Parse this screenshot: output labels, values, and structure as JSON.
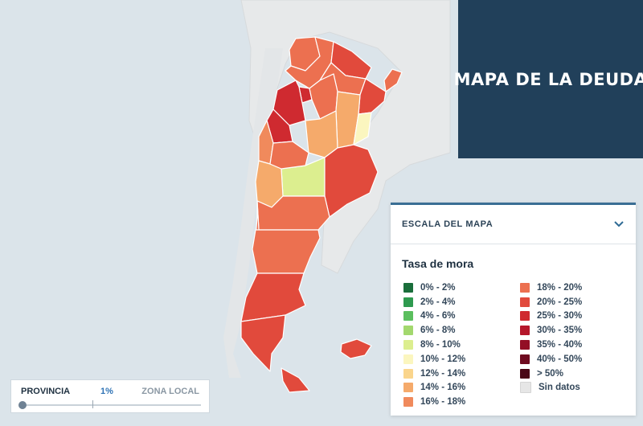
{
  "title": "MAPA DE LA DEUDA",
  "legend": {
    "header": "ESCALA DEL MAPA",
    "subtitle": "Tasa de mora",
    "left": [
      {
        "label": "0% - 2%",
        "color": "#1a6e3b"
      },
      {
        "label": "2% - 4%",
        "color": "#2e9a4f"
      },
      {
        "label": "4% - 6%",
        "color": "#5bbf5e"
      },
      {
        "label": "6% - 8%",
        "color": "#a3d86e"
      },
      {
        "label": "8% - 10%",
        "color": "#dcee8f"
      },
      {
        "label": "10% - 12%",
        "color": "#fbf6bf"
      },
      {
        "label": "12% - 14%",
        "color": "#fad58c"
      },
      {
        "label": "14% - 16%",
        "color": "#f5aa6b"
      },
      {
        "label": "16% - 18%",
        "color": "#f08a5c"
      }
    ],
    "right": [
      {
        "label": "18% - 20%",
        "color": "#ec7050"
      },
      {
        "label": "20% - 25%",
        "color": "#e14a3c"
      },
      {
        "label": "25% - 30%",
        "color": "#cf2a30"
      },
      {
        "label": "30% - 35%",
        "color": "#b5172b"
      },
      {
        "label": "35% - 40%",
        "color": "#930f25"
      },
      {
        "label": "40% - 50%",
        "color": "#6e0a1f"
      },
      {
        "label": "> 50%",
        "color": "#4a0716"
      },
      {
        "label": "Sin datos",
        "color": "#e6e6e6"
      }
    ]
  },
  "slider": {
    "left_label": "PROVINCIA",
    "value": "1%",
    "right_label": "ZONA LOCAL"
  },
  "icons": {
    "chevron": "chevron-down-icon",
    "slider_thumb": "slider-thumb"
  }
}
